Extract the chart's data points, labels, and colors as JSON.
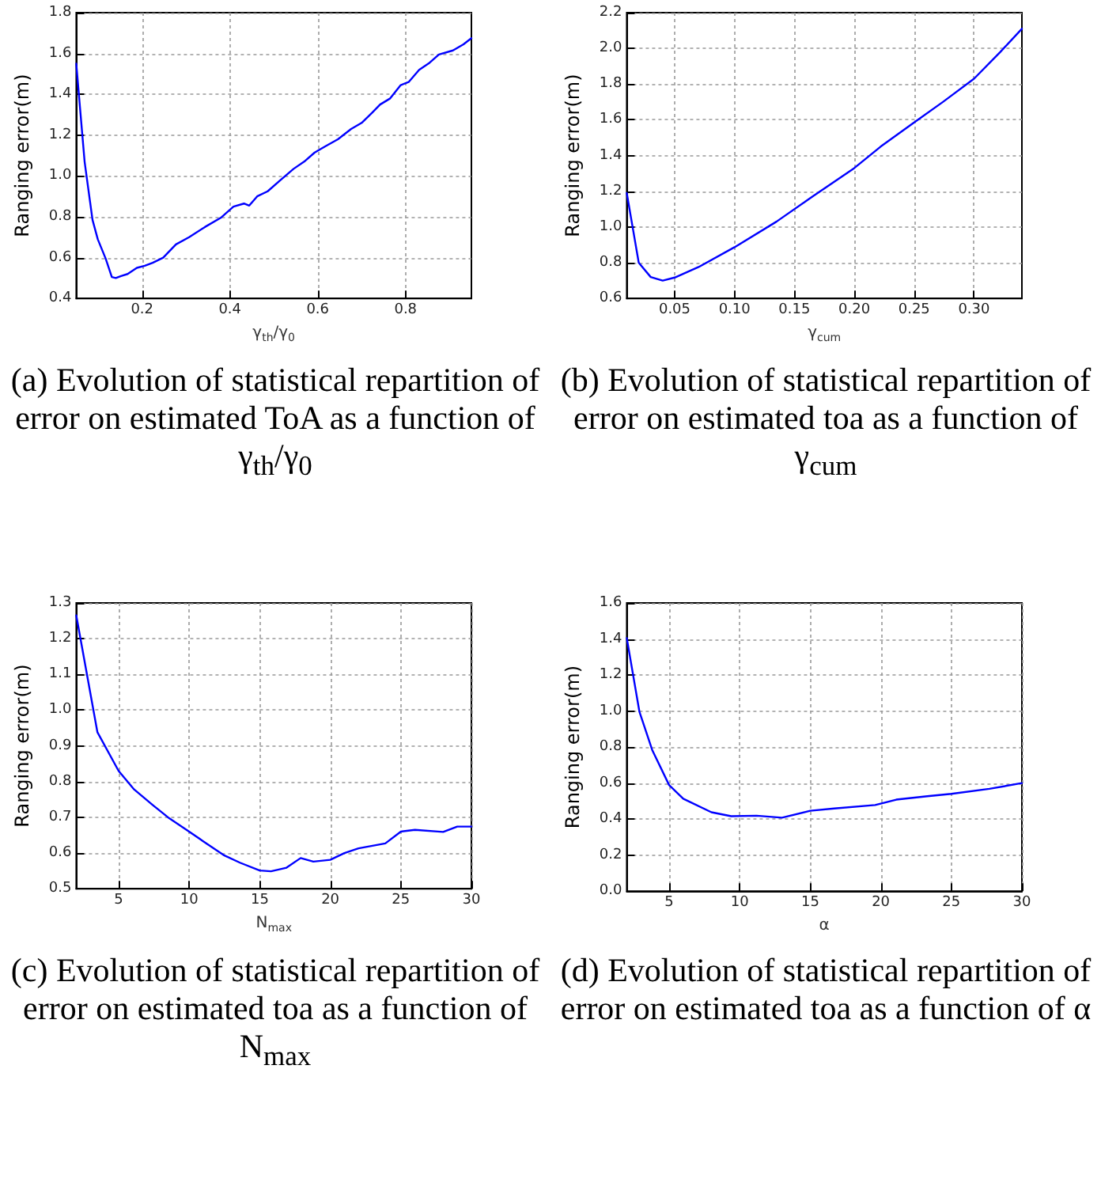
{
  "chart_data": [
    {
      "type": "line",
      "title": "(a) Evolution of statistical repartition of error on estimated ToA as a function of γ$_{th}$/γ$_{0}$",
      "xlabel": "γ$_{th}$/γ$_{0}$",
      "ylabel": "Ranging error(m)",
      "xlim": [
        0.05,
        0.95
      ],
      "xticks": [
        0.2,
        0.4,
        0.6,
        0.8
      ],
      "ylim": [
        0.4,
        1.8
      ],
      "yticks": [
        0.4,
        0.6,
        0.8,
        {
          "value": 1,
          "label": "1.0"
        },
        1.2,
        1.4,
        1.6,
        1.8
      ],
      "grid": true,
      "line_style": "solid",
      "series": [
        {
          "color": "#0000ff",
          "x": [
            0.05,
            0.069,
            0.087,
            0.099,
            0.117,
            0.131,
            0.14,
            0.152,
            0.167,
            0.188,
            0.206,
            0.224,
            0.248,
            0.277,
            0.307,
            0.343,
            0.379,
            0.408,
            0.432,
            0.444,
            0.462,
            0.486,
            0.515,
            0.545,
            0.569,
            0.593,
            0.617,
            0.646,
            0.676,
            0.7,
            0.724,
            0.742,
            0.765,
            0.789,
            0.807,
            0.831,
            0.855,
            0.876,
            0.908,
            0.932,
            0.95
          ],
          "values": [
            1.55,
            1.07,
            0.785,
            0.69,
            0.595,
            0.505,
            0.5,
            0.51,
            0.52,
            0.55,
            0.56,
            0.575,
            0.6,
            0.665,
            0.7,
            0.75,
            0.795,
            0.85,
            0.865,
            0.855,
            0.9,
            0.925,
            0.98,
            1.035,
            1.07,
            1.115,
            1.145,
            1.18,
            1.23,
            1.26,
            1.31,
            1.35,
            1.38,
            1.445,
            1.46,
            1.52,
            1.555,
            1.595,
            1.615,
            1.645,
            1.675
          ]
        }
      ]
    },
    {
      "type": "line",
      "title": "(b) Evolution of statistical repartition of error on estimated toa as a function of γ$_{cum}$",
      "xlabel": "γ$_{cum}$",
      "ylabel": "Ranging error(m)",
      "xlim": [
        0.01,
        0.34
      ],
      "xticks": [
        0.05,
        {
          "value": 0.1,
          "label": "0.10"
        },
        0.15,
        {
          "value": 0.2,
          "label": "0.20"
        },
        0.25,
        {
          "value": 0.3,
          "label": "0.30"
        }
      ],
      "ylim": [
        0.6,
        2.2
      ],
      "yticks": [
        0.6,
        0.8,
        {
          "value": 1,
          "label": "1.0"
        },
        1.2,
        1.4,
        1.6,
        1.8,
        {
          "value": 2,
          "label": "2.0"
        },
        2.2
      ],
      "grid": true,
      "line_style": "solid",
      "series": [
        {
          "color": "#0000ff",
          "x": [
            0.01,
            0.02,
            0.03,
            0.04,
            0.05,
            0.07,
            0.1,
            0.135,
            0.165,
            0.2,
            0.222,
            0.25,
            0.274,
            0.3,
            0.322,
            0.34
          ],
          "values": [
            1.19,
            0.8,
            0.72,
            0.7,
            0.717,
            0.776,
            0.887,
            1.03,
            1.17,
            1.33,
            1.45,
            1.585,
            1.7,
            1.83,
            1.98,
            2.11
          ]
        }
      ]
    },
    {
      "type": "line",
      "title": "(c) Evolution of statistical repartition of error on estimated toa as a function of N$_{max}$",
      "xlabel": "N$_{max}$",
      "ylabel": "Ranging error(m)",
      "xlim": [
        2,
        30
      ],
      "xticks": [
        5,
        10,
        15,
        20,
        25,
        30
      ],
      "ylim": [
        0.5,
        1.3
      ],
      "yticks": [
        0.5,
        0.6,
        0.7,
        0.8,
        0.9,
        {
          "value": 1,
          "label": "1.0"
        },
        1.1,
        1.2,
        1.3
      ],
      "grid": true,
      "line_style": "solid",
      "series": [
        {
          "color": "#0000ff",
          "x": [
            2,
            3.5,
            5,
            6.1,
            7.4,
            8.5,
            10,
            11.1,
            12.5,
            13.6,
            15,
            15.8,
            16.9,
            17.9,
            18.8,
            20,
            21,
            22,
            23.9,
            25,
            26,
            28,
            29,
            30
          ],
          "values": [
            1.265,
            0.938,
            0.83,
            0.778,
            0.735,
            0.7,
            0.66,
            0.63,
            0.593,
            0.573,
            0.551,
            0.549,
            0.559,
            0.586,
            0.576,
            0.581,
            0.6,
            0.613,
            0.627,
            0.66,
            0.665,
            0.659,
            0.674,
            0.674
          ]
        }
      ]
    },
    {
      "type": "line",
      "title": "(d) Evolution of statistical repartition of error on estimated toa as a function of α",
      "xlabel": "α",
      "ylabel": "Ranging error(m)",
      "xlim": [
        2,
        30
      ],
      "xticks": [
        5,
        10,
        15,
        20,
        25,
        30
      ],
      "ylim": [
        0,
        1.6
      ],
      "yticks": [
        {
          "value": 0,
          "label": "0.0"
        },
        0.2,
        0.4,
        0.6,
        0.8,
        {
          "value": 1,
          "label": "1.0"
        },
        1.2,
        1.4,
        1.6
      ],
      "grid": true,
      "line_style": "solid",
      "series": [
        {
          "color": "#0000ff",
          "x": [
            2,
            2.9,
            3.8,
            5,
            6,
            8,
            9.4,
            11.2,
            13,
            15,
            16.7,
            19.6,
            21.1,
            23.3,
            25,
            27.7,
            30
          ],
          "values": [
            1.405,
            0.995,
            0.784,
            0.589,
            0.513,
            0.438,
            0.416,
            0.419,
            0.408,
            0.446,
            0.459,
            0.478,
            0.508,
            0.527,
            0.54,
            0.568,
            0.6
          ]
        }
      ]
    }
  ]
}
